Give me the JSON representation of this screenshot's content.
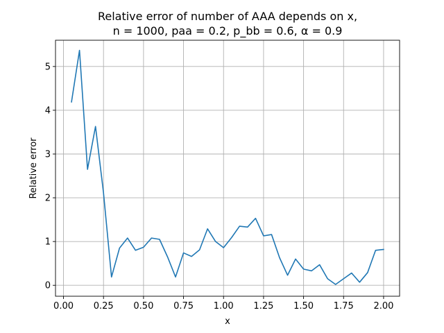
{
  "chart_data": {
    "type": "line",
    "title_line1": "Relative error of number of AAA depends on x,",
    "title_line2": "n = 1000, paa = 0.2, p_bb = 0.6, α = 0.9",
    "xlabel": "x",
    "ylabel": "Relative error",
    "xlim": [
      -0.05,
      2.1
    ],
    "ylim": [
      -0.25,
      5.6
    ],
    "xticks": [
      0.0,
      0.25,
      0.5,
      0.75,
      1.0,
      1.25,
      1.5,
      1.75,
      2.0
    ],
    "xtick_labels": [
      "0.00",
      "0.25",
      "0.50",
      "0.75",
      "1.00",
      "1.25",
      "1.50",
      "1.75",
      "2.00"
    ],
    "yticks": [
      0,
      1,
      2,
      3,
      4,
      5
    ],
    "ytick_labels": [
      "0",
      "1",
      "2",
      "3",
      "4",
      "5"
    ],
    "grid": true,
    "line_color": "#1f77b4",
    "series": [
      {
        "x": [
          0.05,
          0.1,
          0.15,
          0.2,
          0.25,
          0.3,
          0.35,
          0.4,
          0.45,
          0.5,
          0.55,
          0.6,
          0.65,
          0.7,
          0.75,
          0.8,
          0.85,
          0.9,
          0.95,
          1.0,
          1.05,
          1.1,
          1.15,
          1.2,
          1.25,
          1.3,
          1.35,
          1.4,
          1.45,
          1.5,
          1.55,
          1.6,
          1.65,
          1.7,
          1.75,
          1.8,
          1.85,
          1.9,
          1.95,
          2.0
        ],
        "values": [
          4.19,
          5.37,
          2.65,
          3.63,
          2.11,
          0.19,
          0.85,
          1.08,
          0.8,
          0.87,
          1.08,
          1.05,
          0.65,
          0.19,
          0.74,
          0.66,
          0.81,
          1.29,
          1.0,
          0.86,
          1.09,
          1.35,
          1.33,
          1.53,
          1.13,
          1.16,
          0.63,
          0.23,
          0.6,
          0.37,
          0.33,
          0.47,
          0.15,
          0.02,
          0.15,
          0.28,
          0.07,
          0.29,
          0.8,
          0.82
        ]
      }
    ]
  }
}
